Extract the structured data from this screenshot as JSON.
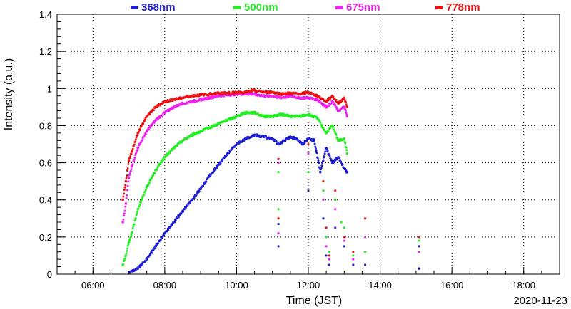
{
  "chart_data": {
    "type": "scatter",
    "xlabel": "Time (JST)",
    "ylabel": "Intensity (a.u.)",
    "date": "2020-11-23",
    "xlim": [
      "05:00",
      "19:00"
    ],
    "ylim": [
      0,
      1.4
    ],
    "xticks": [
      "06:00",
      "08:00",
      "10:00",
      "12:00",
      "14:00",
      "16:00",
      "18:00"
    ],
    "yticks": [
      "0",
      "0.2",
      "0.4",
      "0.6",
      "0.8",
      "1",
      "1.2",
      "1.4"
    ],
    "grid": true,
    "legend": "top",
    "series": [
      {
        "name": "368nm",
        "color": "#1f1fd6",
        "x": [
          "07:00",
          "07:15",
          "07:30",
          "07:45",
          "08:00",
          "08:15",
          "08:30",
          "08:45",
          "09:00",
          "09:15",
          "09:30",
          "09:45",
          "10:00",
          "10:15",
          "10:30",
          "10:45",
          "11:00",
          "11:10",
          "11:20",
          "11:30",
          "11:40",
          "11:50",
          "12:00",
          "12:10",
          "12:20",
          "12:30",
          "12:40",
          "12:50",
          "13:00",
          "13:05",
          "15:05"
        ],
        "y": [
          0.01,
          0.03,
          0.08,
          0.15,
          0.22,
          0.28,
          0.34,
          0.4,
          0.46,
          0.53,
          0.59,
          0.65,
          0.7,
          0.73,
          0.75,
          0.74,
          0.73,
          0.7,
          0.72,
          0.74,
          0.73,
          0.7,
          0.73,
          0.72,
          0.55,
          0.68,
          0.6,
          0.63,
          0.57,
          0.55,
          0.03
        ]
      },
      {
        "name": "500nm",
        "color": "#22ee22",
        "x": [
          "06:50",
          "06:55",
          "07:00",
          "07:05",
          "07:15",
          "07:30",
          "07:45",
          "08:00",
          "08:15",
          "08:30",
          "08:45",
          "09:00",
          "09:15",
          "09:30",
          "09:45",
          "10:00",
          "10:15",
          "10:30",
          "10:45",
          "11:00",
          "11:15",
          "11:30",
          "11:45",
          "12:00",
          "12:15",
          "12:30",
          "12:40",
          "12:50",
          "13:00",
          "13:05"
        ],
        "y": [
          0.05,
          0.1,
          0.17,
          0.22,
          0.35,
          0.47,
          0.56,
          0.63,
          0.68,
          0.72,
          0.75,
          0.77,
          0.79,
          0.81,
          0.83,
          0.85,
          0.87,
          0.87,
          0.85,
          0.85,
          0.86,
          0.85,
          0.85,
          0.86,
          0.84,
          0.76,
          0.8,
          0.72,
          0.73,
          0.65
        ]
      },
      {
        "name": "675nm",
        "color": "#ee22ee",
        "x": [
          "06:50",
          "06:55",
          "07:00",
          "07:05",
          "07:15",
          "07:30",
          "07:45",
          "08:00",
          "08:15",
          "08:30",
          "08:45",
          "09:00",
          "09:15",
          "09:30",
          "09:45",
          "10:00",
          "10:15",
          "10:30",
          "10:45",
          "11:00",
          "11:15",
          "11:30",
          "11:45",
          "12:00",
          "12:15",
          "12:30",
          "12:40",
          "12:50",
          "13:00",
          "13:05"
        ],
        "y": [
          0.28,
          0.38,
          0.52,
          0.58,
          0.68,
          0.77,
          0.83,
          0.87,
          0.9,
          0.92,
          0.93,
          0.94,
          0.95,
          0.96,
          0.965,
          0.97,
          0.97,
          0.97,
          0.96,
          0.96,
          0.95,
          0.96,
          0.95,
          0.95,
          0.94,
          0.9,
          0.93,
          0.88,
          0.9,
          0.85
        ]
      },
      {
        "name": "778nm",
        "color": "#ee1111",
        "x": [
          "06:50",
          "06:55",
          "07:00",
          "07:05",
          "07:15",
          "07:30",
          "07:45",
          "08:00",
          "08:15",
          "08:30",
          "08:45",
          "09:00",
          "09:15",
          "09:30",
          "09:45",
          "10:00",
          "10:15",
          "10:30",
          "10:45",
          "11:00",
          "11:15",
          "11:30",
          "11:45",
          "12:00",
          "12:15",
          "12:30",
          "12:40",
          "12:50",
          "13:00",
          "13:05"
        ],
        "y": [
          0.4,
          0.5,
          0.61,
          0.66,
          0.76,
          0.85,
          0.9,
          0.93,
          0.94,
          0.95,
          0.96,
          0.965,
          0.97,
          0.975,
          0.975,
          0.98,
          0.98,
          0.99,
          0.98,
          0.98,
          0.97,
          0.975,
          0.97,
          0.98,
          0.96,
          0.93,
          0.96,
          0.92,
          0.95,
          0.9
        ]
      }
    ],
    "scatter_points": {
      "368nm": [
        [
          "11:10",
          0.27
        ],
        [
          "11:10",
          0.15
        ],
        [
          "12:00",
          0.45
        ],
        [
          "12:25",
          0.3
        ],
        [
          "12:30",
          0.1
        ],
        [
          "12:35",
          0.05
        ],
        [
          "12:45",
          0.25
        ],
        [
          "13:00",
          0.15
        ],
        [
          "13:15",
          0.05
        ],
        [
          "13:35",
          0.05
        ],
        [
          "15:05",
          0.15
        ]
      ],
      "500nm": [
        [
          "11:10",
          0.55
        ],
        [
          "11:10",
          0.35
        ],
        [
          "12:00",
          0.55
        ],
        [
          "12:25",
          0.45
        ],
        [
          "12:30",
          0.2
        ],
        [
          "12:35",
          0.12
        ],
        [
          "12:45",
          0.4
        ],
        [
          "12:55",
          0.28
        ],
        [
          "13:00",
          0.25
        ],
        [
          "13:15",
          0.1
        ],
        [
          "13:35",
          0.12
        ],
        [
          "15:05",
          0.18
        ]
      ],
      "675nm": [
        [
          "11:10",
          0.6
        ],
        [
          "11:10",
          0.22
        ],
        [
          "12:00",
          0.65
        ],
        [
          "12:25",
          0.4
        ],
        [
          "12:30",
          0.15
        ],
        [
          "12:35",
          0.08
        ],
        [
          "12:45",
          0.35
        ],
        [
          "13:00",
          0.18
        ],
        [
          "13:15",
          0.08
        ],
        [
          "13:35",
          0.2
        ],
        [
          "15:05",
          0.12
        ]
      ],
      "778nm": [
        [
          "11:10",
          0.62
        ],
        [
          "11:10",
          0.3
        ],
        [
          "12:00",
          0.7
        ],
        [
          "12:25",
          0.5
        ],
        [
          "12:30",
          0.25
        ],
        [
          "12:35",
          0.1
        ],
        [
          "12:45",
          0.45
        ],
        [
          "13:00",
          0.2
        ],
        [
          "13:15",
          0.12
        ],
        [
          "13:35",
          0.3
        ],
        [
          "15:05",
          0.2
        ]
      ]
    }
  }
}
